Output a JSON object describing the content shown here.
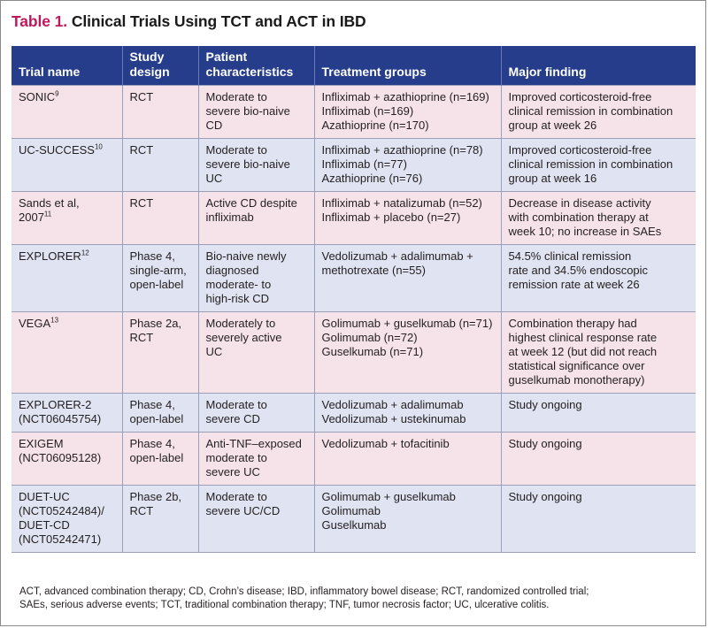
{
  "title": {
    "label": "Table 1.",
    "text": "Clinical Trials Using TCT and ACT in IBD"
  },
  "headers": [
    [
      "Trial name"
    ],
    [
      "Study",
      "design"
    ],
    [
      "Patient",
      "characteristics"
    ],
    [
      "Treatment groups"
    ],
    [
      "Major finding"
    ]
  ],
  "rows": [
    {
      "trial": [
        {
          "t": "SONIC",
          "sup": "9"
        }
      ],
      "design": [
        "RCT"
      ],
      "patients": [
        "Moderate to",
        "severe bio-naive",
        "CD"
      ],
      "treatment": [
        "Infliximab + azathioprine (n=169)",
        "Infliximab (n=169)",
        "Azathioprine (n=170)"
      ],
      "finding": [
        "Improved corticosteroid-free",
        "clinical remission in combination",
        "group at week 26"
      ]
    },
    {
      "trial": [
        {
          "t": "UC-SUCCESS",
          "sup": "10"
        }
      ],
      "design": [
        "RCT"
      ],
      "patients": [
        "Moderate to",
        "severe bio-naive",
        "UC"
      ],
      "treatment": [
        "Infliximab + azathioprine (n=78)",
        "Infliximab (n=77)",
        "Azathioprine (n=76)"
      ],
      "finding": [
        "Improved corticosteroid-free",
        "clinical remission in combination",
        "group at week 16"
      ]
    },
    {
      "trial": [
        {
          "t": "Sands et al,",
          "sup": ""
        },
        {
          "t": "2007",
          "sup": "11"
        }
      ],
      "design": [
        "RCT"
      ],
      "patients": [
        "Active CD despite",
        "infliximab"
      ],
      "treatment": [
        "Infliximab + natalizumab (n=52)",
        "Infliximab + placebo (n=27)"
      ],
      "finding": [
        "Decrease in disease activity",
        "with combination therapy at",
        "week 10; no increase in SAEs"
      ]
    },
    {
      "trial": [
        {
          "t": "EXPLORER",
          "sup": "12"
        }
      ],
      "design": [
        "Phase 4,",
        "single-arm,",
        "open-label"
      ],
      "patients": [
        "Bio-naive newly",
        "diagnosed",
        "moderate- to",
        "high-risk CD"
      ],
      "treatment": [
        "Vedolizumab + adalimumab +",
        "methotrexate (n=55)"
      ],
      "finding": [
        "54.5% clinical remission",
        "rate and 34.5% endoscopic",
        "remission rate at week 26"
      ]
    },
    {
      "trial": [
        {
          "t": "VEGA",
          "sup": "13"
        }
      ],
      "design": [
        "Phase 2a,",
        "RCT"
      ],
      "patients": [
        "Moderately to",
        "severely active",
        "UC"
      ],
      "treatment": [
        "Golimumab + guselkumab (n=71)",
        "Golimumab (n=72)",
        "Guselkumab (n=71)"
      ],
      "finding": [
        "Combination therapy had",
        "highest clinical response rate",
        "at week 12 (but did not reach",
        "statistical significance over",
        "guselkumab monotherapy)"
      ]
    },
    {
      "trial": [
        {
          "t": "EXPLORER-2",
          "sup": ""
        },
        {
          "t": "(NCT06045754)",
          "sup": ""
        }
      ],
      "design": [
        "Phase 4,",
        "open-label"
      ],
      "patients": [
        "Moderate to",
        "severe CD"
      ],
      "treatment": [
        "Vedolizumab + adalimumab",
        "Vedolizumab + ustekinumab"
      ],
      "finding": [
        "Study ongoing"
      ]
    },
    {
      "trial": [
        {
          "t": "EXIGEM",
          "sup": ""
        },
        {
          "t": "(NCT06095128)",
          "sup": ""
        }
      ],
      "design": [
        "Phase 4,",
        "open-label"
      ],
      "patients": [
        "Anti-TNF–exposed",
        "moderate to",
        "severe UC"
      ],
      "treatment": [
        "Vedolizumab + tofacitinib"
      ],
      "finding": [
        "Study ongoing"
      ]
    },
    {
      "trial": [
        {
          "t": "DUET-UC",
          "sup": ""
        },
        {
          "t": "(NCT05242484)/",
          "sup": ""
        },
        {
          "t": "DUET-CD",
          "sup": ""
        },
        {
          "t": "(NCT05242471)",
          "sup": ""
        }
      ],
      "design": [
        "Phase 2b,",
        "RCT"
      ],
      "patients": [
        "Moderate to",
        "severe UC/CD"
      ],
      "treatment": [
        "Golimumab + guselkumab",
        "Golimumab",
        "Guselkumab"
      ],
      "finding": [
        "Study ongoing"
      ]
    }
  ],
  "footnote": [
    "ACT, advanced combination therapy; CD, Crohn’s disease; IBD, inflammatory bowel disease; RCT, randomized controlled trial;",
    "SAEs, serious adverse events; TCT, traditional combination therapy; TNF, tumor necrosis factor; UC, ulcerative colitis."
  ],
  "colors": {
    "title_label": "#c2185b",
    "header_bg": "#263d8c",
    "row_pink": "#f6e3ea",
    "row_blue": "#e0e3f1"
  }
}
